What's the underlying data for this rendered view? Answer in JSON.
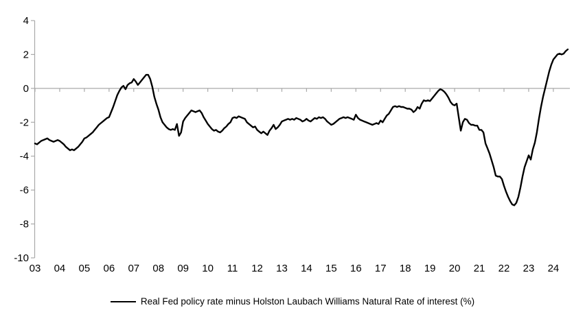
{
  "chart_data": {
    "type": "line",
    "title": "",
    "xlabel": "",
    "ylabel": "",
    "ylim": [
      -10,
      4
    ],
    "yticks": [
      4,
      2,
      0,
      -2,
      -4,
      -6,
      -8,
      -10
    ],
    "ytick_labels": [
      "4",
      "2",
      "0",
      "-2",
      "-4",
      "-6",
      "-8",
      "-10"
    ],
    "xlim": [
      2003,
      2024.67
    ],
    "xticks": [
      2003,
      2004,
      2005,
      2006,
      2007,
      2008,
      2009,
      2010,
      2011,
      2012,
      2013,
      2014,
      2015,
      2016,
      2017,
      2018,
      2019,
      2020,
      2021,
      2022,
      2023,
      2024
    ],
    "xtick_labels": [
      "03",
      "04",
      "05",
      "06",
      "07",
      "08",
      "09",
      "10",
      "11",
      "12",
      "13",
      "14",
      "15",
      "16",
      "17",
      "18",
      "19",
      "20",
      "21",
      "22",
      "23",
      "24"
    ],
    "grid": "zero-line-only",
    "legend_position": "bottom-center",
    "axis_color": "#a9a9a9",
    "series": [
      {
        "name": "Real Fed policy rate minus Holston Laubach Williams Natural Rate of interest (%)",
        "color": "#000000",
        "line_width": 2.4,
        "start_year": 2003,
        "frequency": "monthly",
        "values": [
          -3.25,
          -3.3,
          -3.2,
          -3.1,
          -3.05,
          -3.0,
          -2.95,
          -3.05,
          -3.1,
          -3.15,
          -3.1,
          -3.05,
          -3.1,
          -3.2,
          -3.3,
          -3.45,
          -3.55,
          -3.65,
          -3.6,
          -3.65,
          -3.55,
          -3.45,
          -3.3,
          -3.15,
          -2.95,
          -2.9,
          -2.8,
          -2.7,
          -2.6,
          -2.45,
          -2.3,
          -2.15,
          -2.05,
          -1.95,
          -1.85,
          -1.75,
          -1.7,
          -1.4,
          -1.1,
          -0.75,
          -0.4,
          -0.15,
          0.05,
          0.15,
          -0.05,
          0.2,
          0.3,
          0.35,
          0.55,
          0.4,
          0.2,
          0.35,
          0.5,
          0.65,
          0.8,
          0.8,
          0.55,
          0.1,
          -0.5,
          -0.9,
          -1.25,
          -1.7,
          -2.0,
          -2.15,
          -2.3,
          -2.4,
          -2.45,
          -2.4,
          -2.45,
          -2.1,
          -2.8,
          -2.6,
          -1.95,
          -1.75,
          -1.6,
          -1.45,
          -1.3,
          -1.35,
          -1.4,
          -1.35,
          -1.3,
          -1.45,
          -1.7,
          -1.9,
          -2.1,
          -2.25,
          -2.4,
          -2.5,
          -2.45,
          -2.55,
          -2.6,
          -2.5,
          -2.35,
          -2.25,
          -2.1,
          -2.0,
          -1.75,
          -1.7,
          -1.75,
          -1.65,
          -1.7,
          -1.75,
          -1.8,
          -2.0,
          -2.1,
          -2.2,
          -2.3,
          -2.25,
          -2.45,
          -2.55,
          -2.65,
          -2.55,
          -2.65,
          -2.75,
          -2.5,
          -2.35,
          -2.15,
          -2.4,
          -2.3,
          -2.15,
          -1.95,
          -1.9,
          -1.85,
          -1.8,
          -1.85,
          -1.8,
          -1.85,
          -1.75,
          -1.8,
          -1.85,
          -1.95,
          -1.9,
          -1.8,
          -1.9,
          -1.95,
          -1.85,
          -1.75,
          -1.8,
          -1.7,
          -1.75,
          -1.7,
          -1.8,
          -1.95,
          -2.05,
          -2.15,
          -2.1,
          -2.0,
          -1.9,
          -1.8,
          -1.75,
          -1.7,
          -1.75,
          -1.7,
          -1.75,
          -1.8,
          -1.85,
          -1.55,
          -1.75,
          -1.85,
          -1.9,
          -1.95,
          -2.0,
          -2.05,
          -2.1,
          -2.15,
          -2.1,
          -2.05,
          -2.1,
          -1.9,
          -2.0,
          -1.8,
          -1.6,
          -1.5,
          -1.3,
          -1.1,
          -1.05,
          -1.1,
          -1.05,
          -1.1,
          -1.1,
          -1.15,
          -1.2,
          -1.2,
          -1.25,
          -1.4,
          -1.3,
          -1.1,
          -1.2,
          -0.9,
          -0.7,
          -0.75,
          -0.7,
          -0.75,
          -0.6,
          -0.45,
          -0.3,
          -0.15,
          -0.05,
          -0.1,
          -0.2,
          -0.35,
          -0.55,
          -0.8,
          -0.95,
          -1.0,
          -0.9,
          -1.7,
          -2.5,
          -2.0,
          -1.8,
          -1.85,
          -2.05,
          -2.15,
          -2.15,
          -2.2,
          -2.2,
          -2.45,
          -2.45,
          -2.6,
          -3.25,
          -3.55,
          -3.85,
          -4.25,
          -4.65,
          -5.15,
          -5.2,
          -5.2,
          -5.35,
          -5.75,
          -6.1,
          -6.4,
          -6.65,
          -6.85,
          -6.9,
          -6.75,
          -6.4,
          -5.85,
          -5.2,
          -4.65,
          -4.3,
          -3.95,
          -4.2,
          -3.6,
          -3.2,
          -2.6,
          -1.8,
          -1.1,
          -0.5,
          0.0,
          0.5,
          1.0,
          1.4,
          1.7,
          1.85,
          2.0,
          2.05,
          2.0,
          2.05,
          2.2,
          2.3
        ]
      }
    ]
  },
  "legend": {
    "label": "Real Fed policy rate minus Holston Laubach Williams Natural Rate of interest (%)"
  }
}
